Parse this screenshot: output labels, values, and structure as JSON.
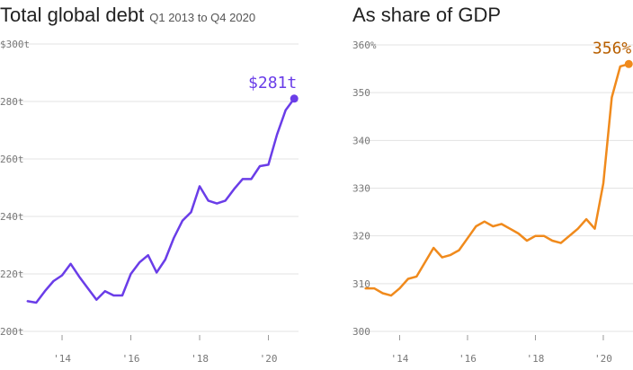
{
  "left": {
    "title": "Total global debt",
    "subtitle": "Q1 2013 to Q4 2020",
    "end_label": "$281t"
  },
  "right": {
    "title": "As share of GDP",
    "end_label": "356%"
  },
  "colors": {
    "left_line": "#6a3de8",
    "right_line": "#f08a1c",
    "right_label": "#b85f00"
  },
  "chart_data": [
    {
      "type": "line",
      "title": "Total global debt",
      "subtitle": "Q1 2013 to Q4 2020",
      "ylim": [
        200,
        300
      ],
      "yticks": [
        200,
        220,
        240,
        260,
        280,
        300
      ],
      "ytick_labels": [
        "200t",
        "220t",
        "240t",
        "260t",
        "280t",
        "$300t"
      ],
      "xlim": [
        2012.875,
        2020.875
      ],
      "xticks": [
        2014,
        2016,
        2018,
        2020
      ],
      "xtick_labels": [
        "'14",
        "'16",
        "'18",
        "'20"
      ],
      "grid": "horizontal",
      "end_label": "$281t",
      "series": [
        {
          "x": [
            2013.0,
            2013.25,
            2013.5,
            2013.75,
            2014.0,
            2014.25,
            2014.5,
            2014.75,
            2015.0,
            2015.25,
            2015.5,
            2015.75,
            2016.0,
            2016.25,
            2016.5,
            2016.75,
            2017.0,
            2017.25,
            2017.5,
            2017.75,
            2018.0,
            2018.25,
            2018.5,
            2018.75,
            2019.0,
            2019.25,
            2019.5,
            2019.75,
            2020.0,
            2020.25,
            2020.5,
            2020.75
          ],
          "values": [
            210.5,
            210,
            214,
            217.5,
            219.5,
            223.5,
            219,
            215,
            211,
            214,
            212.5,
            212.5,
            220,
            224,
            226.5,
            220.5,
            225,
            232.5,
            238.5,
            241.5,
            250.5,
            245.5,
            244.5,
            245.5,
            249.5,
            253,
            253,
            257.5,
            258,
            268.5,
            277,
            281
          ]
        }
      ]
    },
    {
      "type": "line",
      "title": "As share of GDP",
      "ylim": [
        300,
        360
      ],
      "yticks": [
        300,
        310,
        320,
        330,
        340,
        350,
        360
      ],
      "ytick_labels": [
        "300",
        "310",
        "320",
        "330",
        "340",
        "350",
        "360%"
      ],
      "xlim": [
        2012.875,
        2020.875
      ],
      "xticks": [
        2014,
        2016,
        2018,
        2020
      ],
      "xtick_labels": [
        "'14",
        "'16",
        "'18",
        "'20"
      ],
      "grid": "horizontal",
      "end_label": "356%",
      "series": [
        {
          "x": [
            2013.0,
            2013.25,
            2013.5,
            2013.75,
            2014.0,
            2014.25,
            2014.5,
            2014.75,
            2015.0,
            2015.25,
            2015.5,
            2015.75,
            2016.0,
            2016.25,
            2016.5,
            2016.75,
            2017.0,
            2017.25,
            2017.5,
            2017.75,
            2018.0,
            2018.25,
            2018.5,
            2018.75,
            2019.0,
            2019.25,
            2019.5,
            2019.75,
            2020.0,
            2020.25,
            2020.5,
            2020.75
          ],
          "values": [
            309,
            309,
            308,
            307.5,
            309,
            311,
            311.5,
            314.5,
            317.5,
            315.5,
            316,
            317,
            319.5,
            322,
            323,
            322,
            322.5,
            321.5,
            320.5,
            319,
            320,
            320,
            319,
            318.5,
            320,
            321.5,
            323.5,
            321.5,
            331,
            349,
            355.5,
            356
          ]
        }
      ]
    }
  ]
}
